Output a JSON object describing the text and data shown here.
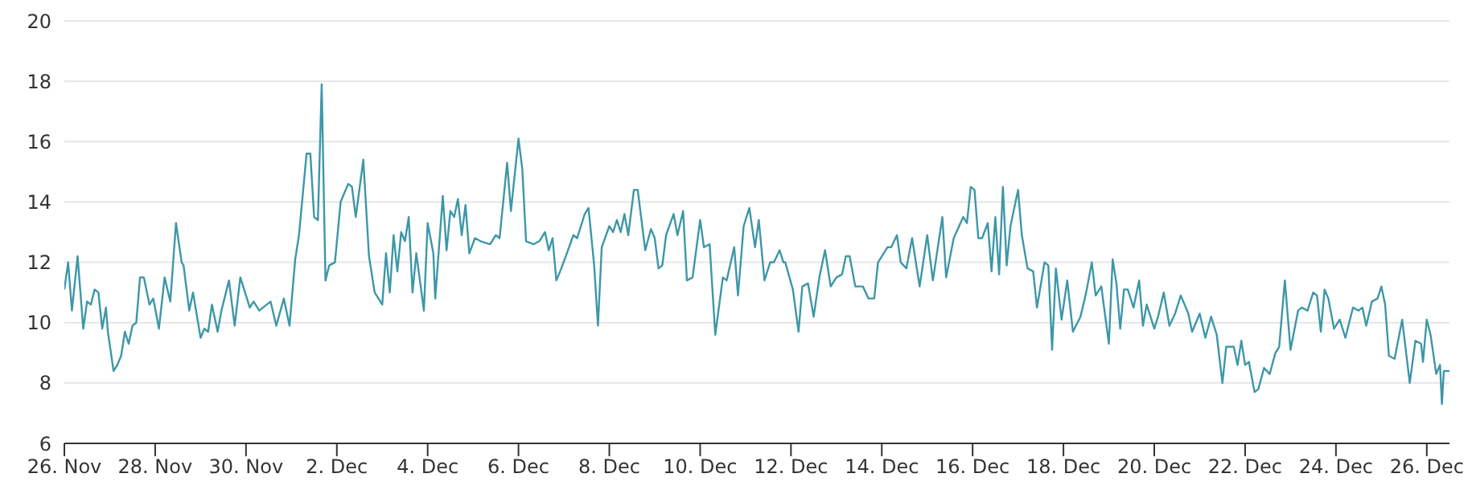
{
  "chart_data": {
    "type": "line",
    "color": "#3d97a8",
    "grid": "y",
    "marker": "none",
    "line_style": "solid",
    "xlim": [
      "--11-26T00:00",
      "--12-26T12:00"
    ],
    "xticks": [
      {
        "value": "--11-26",
        "label": "26. Nov"
      },
      {
        "value": "--11-28",
        "label": "28. Nov"
      },
      {
        "value": "--11-30",
        "label": "30. Nov"
      },
      {
        "value": "--12-02",
        "label": "2. Dec"
      },
      {
        "value": "--12-04",
        "label": "4. Dec"
      },
      {
        "value": "--12-06",
        "label": "6. Dec"
      },
      {
        "value": "--12-08",
        "label": "8. Dec"
      },
      {
        "value": "--12-10",
        "label": "10. Dec"
      },
      {
        "value": "--12-12",
        "label": "12. Dec"
      },
      {
        "value": "--12-14",
        "label": "14. Dec"
      },
      {
        "value": "--12-16",
        "label": "16. Dec"
      },
      {
        "value": "--12-18",
        "label": "18. Dec"
      },
      {
        "value": "--12-20",
        "label": "20. Dec"
      },
      {
        "value": "--12-22",
        "label": "22. Dec"
      },
      {
        "value": "--12-24",
        "label": "24. Dec"
      },
      {
        "value": "--12-26",
        "label": "26. Dec"
      }
    ],
    "ylim": [
      6,
      20
    ],
    "yticks": [
      6,
      8,
      10,
      12,
      14,
      16,
      18,
      20
    ],
    "x": [
      "--11-26T00:00",
      "--11-26T02:00",
      "--11-26T04:00",
      "--11-26T07:00",
      "--11-26T10:00",
      "--11-26T12:00",
      "--11-26T14:00",
      "--11-26T16:00",
      "--11-26T18:00",
      "--11-26T20:00",
      "--11-26T22:00",
      "--11-26T23:00",
      "--11-27T02:00",
      "--11-27T04:00",
      "--11-27T06:00",
      "--11-27T08:00",
      "--11-27T10:00",
      "--11-27T12:00",
      "--11-27T14:00",
      "--11-27T16:00",
      "--11-27T18:00",
      "--11-27T21:00",
      "--11-27T23:00",
      "--11-28T02:00",
      "--11-28T05:00",
      "--11-28T08:00",
      "--11-28T11:00",
      "--11-28T14:00",
      "--11-28T15:00",
      "--11-28T18:00",
      "--11-28T20:00",
      "--11-29T00:00",
      "--11-29T02:00",
      "--11-29T04:00",
      "--11-29T06:00",
      "--11-29T09:00",
      "--11-29T11:00",
      "--11-29T15:00",
      "--11-29T18:00",
      "--11-29T21:00",
      "--11-30T02:00",
      "--11-30T04:00",
      "--11-30T07:00",
      "--11-30T13:00",
      "--11-30T16:00",
      "--11-30T20:00",
      "--11-30T23:00",
      "--12-01T02:00",
      "--12-01T04:00",
      "--12-01T08:00",
      "--12-01T10:00",
      "--12-01T12:00",
      "--12-01T14:00",
      "--12-01T16:00",
      "--12-01T18:00",
      "--12-01T20:00",
      "--12-01T23:00",
      "--12-02T02:00",
      "--12-02T06:00",
      "--12-02T08:00",
      "--12-02T10:00",
      "--12-02T14:00",
      "--12-02T17:00",
      "--12-02T20:00",
      "--12-03T00:00",
      "--12-03T02:00",
      "--12-03T04:00",
      "--12-03T06:00",
      "--12-03T08:00",
      "--12-03T10:00",
      "--12-03T12:00",
      "--12-03T14:00",
      "--12-03T16:00",
      "--12-03T18:00",
      "--12-03T22:00",
      "--12-04T00:00",
      "--12-04T03:00",
      "--12-04T04:00",
      "--12-04T08:00",
      "--12-04T10:00",
      "--12-04T12:00",
      "--12-04T14:00",
      "--12-04T16:00",
      "--12-04T18:00",
      "--12-04T20:00",
      "--12-04T22:00",
      "--12-05T01:00",
      "--12-05T04:00",
      "--12-05T09:00",
      "--12-05T12:00",
      "--12-05T14:00",
      "--12-05T18:00",
      "--12-05T20:00",
      "--12-06T00:00",
      "--12-06T02:00",
      "--12-06T04:00",
      "--12-06T08:00",
      "--12-06T11:00",
      "--12-06T14:00",
      "--12-06T16:00",
      "--12-06T18:00",
      "--12-06T20:00",
      "--12-06T22:00",
      "--12-07T01:00",
      "--12-07T05:00",
      "--12-07T07:00",
      "--12-07T11:00",
      "--12-07T13:00",
      "--12-07T16:00",
      "--12-07T18:00",
      "--12-07T20:00",
      "--12-08T00:00",
      "--12-08T02:00",
      "--12-08T04:00",
      "--12-08T06:00",
      "--12-08T08:00",
      "--12-08T10:00",
      "--12-08T13:00",
      "--12-08T15:00",
      "--12-08T19:00",
      "--12-08T22:00",
      "--12-09T00:00",
      "--12-09T02:00",
      "--12-09T04:00",
      "--12-09T06:00",
      "--12-09T10:00",
      "--12-09T12:00",
      "--12-09T15:00",
      "--12-09T17:00",
      "--12-09T20:00",
      "--12-10T00:00",
      "--12-10T02:00",
      "--12-10T05:00",
      "--12-10T08:00",
      "--12-10T12:00",
      "--12-10T14:00",
      "--12-10T18:00",
      "--12-10T20:00",
      "--12-10T23:00",
      "--12-11T02:00",
      "--12-11T05:00",
      "--12-11T07:00",
      "--12-11T10:00",
      "--12-11T13:00",
      "--12-11T15:00",
      "--12-11T18:00",
      "--12-11T20:00",
      "--12-11T21:00",
      "--12-12T01:00",
      "--12-12T04:00",
      "--12-12T06:00",
      "--12-12T09:00",
      "--12-12T12:00",
      "--12-12T15:00",
      "--12-12T18:00",
      "--12-12T21:00",
      "--12-13T00:00",
      "--12-13T03:00",
      "--12-13T05:00",
      "--12-13T07:00",
      "--12-13T10:00",
      "--12-13T14:00",
      "--12-13T17:00",
      "--12-13T20:00",
      "--12-13T22:00",
      "--12-14T03:00",
      "--12-14T05:00",
      "--12-14T08:00",
      "--12-14T10:00",
      "--12-14T13:00",
      "--12-14T16:00",
      "--12-14T20:00",
      "--12-15T00:00",
      "--12-15T03:00",
      "--12-15T08:00",
      "--12-15T10:00",
      "--12-15T14:00",
      "--12-15T19:00",
      "--12-15T21:00",
      "--12-15T23:00",
      "--12-16T01:00",
      "--12-16T03:00",
      "--12-16T05:00",
      "--12-16T08:00",
      "--12-16T10:00",
      "--12-16T12:00",
      "--12-16T14:00",
      "--12-16T16:00",
      "--12-16T18:00",
      "--12-16T20:00",
      "--12-17T00:00",
      "--12-17T02:00",
      "--12-17T05:00",
      "--12-17T08:00",
      "--12-17T10:00",
      "--12-17T14:00",
      "--12-17T16:00",
      "--12-17T18:00",
      "--12-17T20:00",
      "--12-17T23:00",
      "--12-18T02:00",
      "--12-18T05:00",
      "--12-18T09:00",
      "--12-18T12:00",
      "--12-18T15:00",
      "--12-18T17:00",
      "--12-18T20:00",
      "--12-19T00:00",
      "--12-19T02:00",
      "--12-19T04:00",
      "--12-19T06:00",
      "--12-19T08:00",
      "--12-19T10:00",
      "--12-19T13:00",
      "--12-19T16:00",
      "--12-19T18:00",
      "--12-19T20:00",
      "--12-20T00:00",
      "--12-20T02:00",
      "--12-20T05:00",
      "--12-20T08:00",
      "--12-20T11:00",
      "--12-20T14:00",
      "--12-20T18:00",
      "--12-20T20:00",
      "--12-21T00:00",
      "--12-21T03:00",
      "--12-21T06:00",
      "--12-21T09:00",
      "--12-21T12:00",
      "--12-21T14:00",
      "--12-21T18:00",
      "--12-21T20:00",
      "--12-21T22:00",
      "--12-22T00:00",
      "--12-22T02:00",
      "--12-22T05:00",
      "--12-22T07:00",
      "--12-22T10:00",
      "--12-22T13:00",
      "--12-22T16:00",
      "--12-22T18:00",
      "--12-22T21:00",
      "--12-23T00:00",
      "--12-23T04:00",
      "--12-23T06:00",
      "--12-23T09:00",
      "--12-23T12:00",
      "--12-23T14:00",
      "--12-23T16:00",
      "--12-23T18:00",
      "--12-23T20:00",
      "--12-23T23:00",
      "--12-24T02:00",
      "--12-24T05:00",
      "--12-24T09:00",
      "--12-24T12:00",
      "--12-24T14:00",
      "--12-24T16:00",
      "--12-24T19:00",
      "--12-24T22:00",
      "--12-25T00:00",
      "--12-25T02:00",
      "--12-25T04:00",
      "--12-25T07:00",
      "--12-25T11:00",
      "--12-25T15:00",
      "--12-25T18:00",
      "--12-25T21:00",
      "--12-25T22:00",
      "--12-26T00:00",
      "--12-26T02:00",
      "--12-26T05:00",
      "--12-26T07:00",
      "--12-26T08:00",
      "--12-26T09:00",
      "--12-26T12:00"
    ],
    "values": [
      11.1,
      12.0,
      10.4,
      12.2,
      9.8,
      10.7,
      10.6,
      11.1,
      11.0,
      9.8,
      10.5,
      9.7,
      8.4,
      8.6,
      8.9,
      9.7,
      9.3,
      9.9,
      10.0,
      11.5,
      11.5,
      10.6,
      10.8,
      9.8,
      11.5,
      10.7,
      13.3,
      12.0,
      11.9,
      10.4,
      11.0,
      9.5,
      9.8,
      9.7,
      10.6,
      9.7,
      10.4,
      11.4,
      9.9,
      11.5,
      10.5,
      10.7,
      10.4,
      10.7,
      9.9,
      10.8,
      9.9,
      12.1,
      12.9,
      15.6,
      15.6,
      13.5,
      13.4,
      17.9,
      11.4,
      11.9,
      12.0,
      14.0,
      14.6,
      14.5,
      13.5,
      15.4,
      12.2,
      11.0,
      10.6,
      12.3,
      11.0,
      12.9,
      11.7,
      13.0,
      12.7,
      13.5,
      11.0,
      12.3,
      10.4,
      13.3,
      12.3,
      10.8,
      14.2,
      12.4,
      13.7,
      13.5,
      14.1,
      12.9,
      13.9,
      12.3,
      12.8,
      12.7,
      12.6,
      12.9,
      12.8,
      15.3,
      13.7,
      16.1,
      15.1,
      12.7,
      12.6,
      12.7,
      13.0,
      12.4,
      12.8,
      11.4,
      11.7,
      12.2,
      12.9,
      12.8,
      13.6,
      13.8,
      11.9,
      9.9,
      12.5,
      13.2,
      13.0,
      13.4,
      13.0,
      13.6,
      12.9,
      14.4,
      14.4,
      12.4,
      13.1,
      12.8,
      11.8,
      11.9,
      12.9,
      13.6,
      12.9,
      13.7,
      11.4,
      11.5,
      13.4,
      12.5,
      12.6,
      9.6,
      11.5,
      11.4,
      12.5,
      10.9,
      13.2,
      13.8,
      12.5,
      13.4,
      11.4,
      12.0,
      12.0,
      12.4,
      12.0,
      12.0,
      11.1,
      9.7,
      11.2,
      11.3,
      10.2,
      11.5,
      12.4,
      11.2,
      11.5,
      11.6,
      12.2,
      12.2,
      11.2,
      11.2,
      10.8,
      10.8,
      12.0,
      12.5,
      12.5,
      12.9,
      12.0,
      11.8,
      12.8,
      11.2,
      12.9,
      11.4,
      13.5,
      11.5,
      12.8,
      13.5,
      13.3,
      14.5,
      14.4,
      12.8,
      12.8,
      13.3,
      11.7,
      13.5,
      11.6,
      14.5,
      11.9,
      13.2,
      14.4,
      12.9,
      11.8,
      11.7,
      10.5,
      12.0,
      11.9,
      9.1,
      11.8,
      10.1,
      11.4,
      9.7,
      10.2,
      11.0,
      12.0,
      10.9,
      11.2,
      9.3,
      12.1,
      11.3,
      9.8,
      11.1,
      11.1,
      10.5,
      11.4,
      9.9,
      10.6,
      9.8,
      10.2,
      11.0,
      9.9,
      10.3,
      10.9,
      10.3,
      9.7,
      10.3,
      9.5,
      10.2,
      9.6,
      8.0,
      9.2,
      9.2,
      8.6,
      9.4,
      8.6,
      8.7,
      7.7,
      7.8,
      8.5,
      8.3,
      9.0,
      9.2,
      11.4,
      9.1,
      10.4,
      10.5,
      10.4,
      11.0,
      10.9,
      9.7,
      11.1,
      10.8,
      9.8,
      10.1,
      9.5,
      10.5,
      10.4,
      10.5,
      9.9,
      10.7,
      10.8,
      11.2,
      10.6,
      8.9,
      8.8,
      10.1,
      8.0,
      9.4,
      9.3,
      8.7,
      10.1,
      9.6,
      8.3,
      8.6,
      7.3,
      8.4,
      8.4
    ]
  }
}
